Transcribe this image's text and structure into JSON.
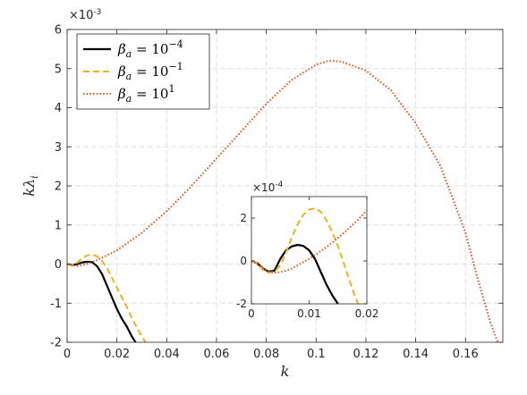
{
  "chart_data": [
    {
      "type": "line",
      "xlabel": "k",
      "ylabel": "kλ",
      "ylabel_sub": "i",
      "exponent_label": "×10",
      "exponent_power": "-3",
      "xlim": [
        0,
        0.175
      ],
      "ylim": [
        -2,
        6
      ],
      "xticks": [
        "0",
        "0.02",
        "0.04",
        "0.06",
        "0.08",
        "0.1",
        "0.12",
        "0.14",
        "0.16"
      ],
      "xtick_values": [
        0,
        0.02,
        0.04,
        0.06,
        0.08,
        0.1,
        0.12,
        0.14,
        0.16
      ],
      "yticks": [
        "-2",
        "-1",
        "0",
        "1",
        "2",
        "3",
        "4",
        "5",
        "6"
      ],
      "ytick_values": [
        -2,
        -1,
        0,
        1,
        2,
        3,
        4,
        5,
        6
      ],
      "grid": true,
      "legend_position": "top-left",
      "legend": [
        {
          "prefix": "β",
          "sub": "a",
          "eq": " = 10",
          "sup": "−4"
        },
        {
          "prefix": "β",
          "sub": "a",
          "eq": " = 10",
          "sup": "−1"
        },
        {
          "prefix": "β",
          "sub": "a",
          "eq": " = 10",
          "sup": "1"
        }
      ],
      "series": [
        {
          "color": "#000000",
          "dash": "solid",
          "x": [
            0,
            0.002,
            0.004,
            0.006,
            0.008,
            0.01,
            0.012,
            0.014,
            0.016,
            0.018,
            0.02,
            0.022,
            0.024,
            0.026,
            0.0275
          ],
          "y": [
            0,
            -0.03,
            0.0,
            0.04,
            0.06,
            0.05,
            -0.05,
            -0.25,
            -0.55,
            -0.85,
            -1.15,
            -1.4,
            -1.6,
            -1.85,
            -2.0
          ]
        },
        {
          "color": "#EDB120",
          "dash": "dashed",
          "x": [
            0,
            0.002,
            0.004,
            0.006,
            0.008,
            0.01,
            0.012,
            0.014,
            0.016,
            0.018,
            0.02,
            0.022,
            0.024,
            0.026,
            0.028,
            0.03,
            0.0315
          ],
          "y": [
            0,
            -0.03,
            0.03,
            0.14,
            0.22,
            0.24,
            0.2,
            0.08,
            -0.1,
            -0.35,
            -0.6,
            -0.85,
            -1.1,
            -1.38,
            -1.62,
            -1.85,
            -2.0
          ]
        },
        {
          "color": "#D95319",
          "dash": "dotted",
          "x": [
            0,
            0.004,
            0.008,
            0.012,
            0.02,
            0.03,
            0.04,
            0.05,
            0.06,
            0.07,
            0.08,
            0.09,
            0.1,
            0.105,
            0.11,
            0.12,
            0.13,
            0.14,
            0.15,
            0.16,
            0.165,
            0.17,
            0.173
          ],
          "y": [
            0,
            -0.05,
            0.0,
            0.1,
            0.35,
            0.8,
            1.35,
            2.0,
            2.7,
            3.4,
            4.1,
            4.7,
            5.1,
            5.2,
            5.18,
            4.95,
            4.45,
            3.6,
            2.5,
            0.8,
            -0.4,
            -1.5,
            -2.0
          ]
        }
      ]
    },
    {
      "type": "line",
      "role": "inset",
      "exponent_label": "×10",
      "exponent_power": "-4",
      "xlim": [
        0,
        0.02
      ],
      "ylim": [
        -2,
        3
      ],
      "xticks": [
        "0",
        "0.01",
        "0.02"
      ],
      "xtick_values": [
        0,
        0.01,
        0.02
      ],
      "yticks": [
        "-2",
        "0",
        "2"
      ],
      "ytick_values": [
        -2,
        0,
        2
      ],
      "grid": false,
      "series": [
        {
          "color": "#000000",
          "dash": "solid",
          "x": [
            0,
            0.001,
            0.002,
            0.003,
            0.004,
            0.005,
            0.006,
            0.007,
            0.008,
            0.009,
            0.01,
            0.011,
            0.012,
            0.013,
            0.014,
            0.015
          ],
          "y": [
            0,
            -0.1,
            -0.35,
            -0.5,
            -0.45,
            0.1,
            0.5,
            0.68,
            0.75,
            0.7,
            0.5,
            0.1,
            -0.5,
            -1.1,
            -1.6,
            -2.0
          ]
        },
        {
          "color": "#EDB120",
          "dash": "dashed",
          "x": [
            0,
            0.001,
            0.002,
            0.003,
            0.004,
            0.005,
            0.006,
            0.007,
            0.008,
            0.009,
            0.01,
            0.011,
            0.012,
            0.013,
            0.014,
            0.015,
            0.016,
            0.017,
            0.018,
            0.0185
          ],
          "y": [
            0,
            -0.1,
            -0.4,
            -0.55,
            -0.5,
            -0.2,
            0.4,
            1.1,
            1.7,
            2.15,
            2.4,
            2.45,
            2.3,
            1.9,
            1.35,
            0.7,
            -0.1,
            -0.9,
            -1.7,
            -2.0
          ]
        },
        {
          "color": "#D95319",
          "dash": "dotted",
          "x": [
            0,
            0.001,
            0.002,
            0.003,
            0.004,
            0.005,
            0.006,
            0.007,
            0.008,
            0.009,
            0.01,
            0.012,
            0.014,
            0.016,
            0.018,
            0.02
          ],
          "y": [
            0,
            -0.15,
            -0.35,
            -0.5,
            -0.55,
            -0.52,
            -0.45,
            -0.35,
            -0.2,
            -0.05,
            0.1,
            0.45,
            0.85,
            1.3,
            1.8,
            2.35
          ]
        }
      ]
    }
  ]
}
